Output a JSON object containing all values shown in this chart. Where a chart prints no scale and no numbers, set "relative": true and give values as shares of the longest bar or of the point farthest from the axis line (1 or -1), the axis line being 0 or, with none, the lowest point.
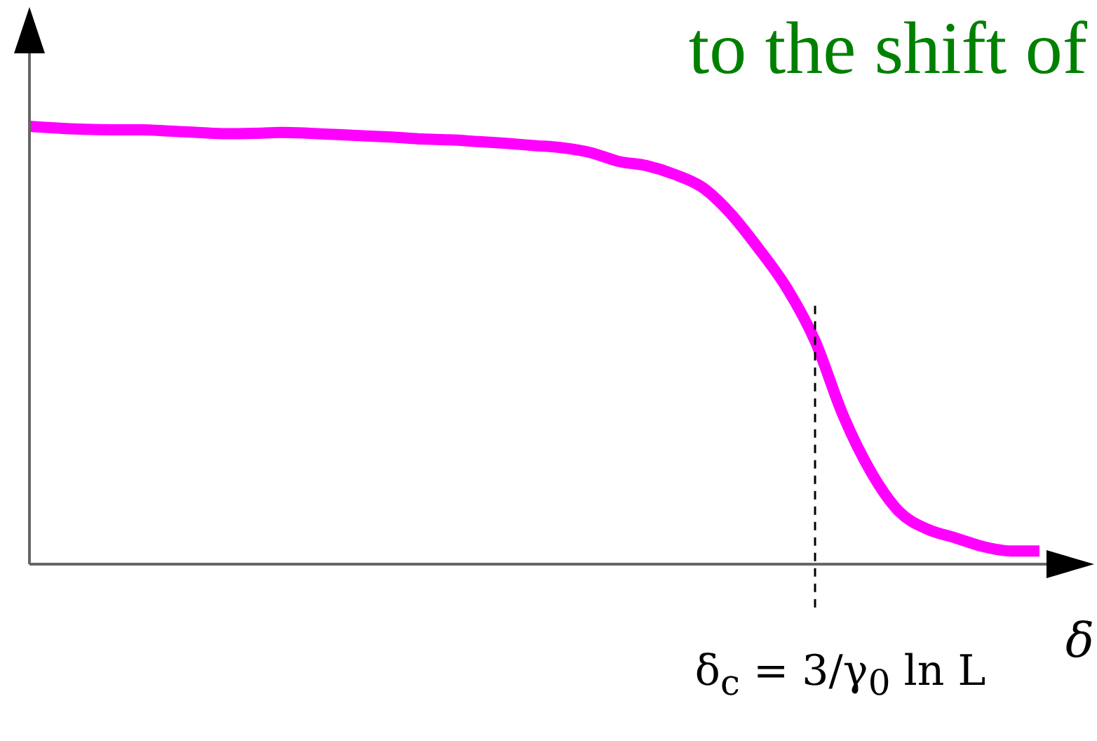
{
  "chart_data": {
    "type": "line",
    "relative": true,
    "categories": [
      null,
      null,
      null,
      null,
      null,
      null,
      null,
      null,
      null,
      null,
      null,
      null,
      null,
      null,
      null,
      null,
      null,
      null,
      null,
      null,
      null,
      null,
      null,
      null,
      null,
      null,
      null,
      null,
      null,
      null,
      null,
      null,
      null,
      null,
      null,
      null,
      null
    ],
    "values": [
      1,
      0.996,
      0.993,
      0.992,
      0.992,
      0.989,
      0.986,
      0.983,
      0.984,
      0.986,
      0.984,
      0.981,
      0.978,
      0.975,
      0.971,
      0.969,
      0.965,
      0.961,
      0.956,
      0.951,
      0.94,
      0.92,
      0.91,
      0.89,
      0.86,
      0.8,
      0.72,
      0.63,
      0.51,
      0.34,
      0.21,
      0.12,
      0.08,
      0.06,
      0.04,
      0.03,
      0.03
    ],
    "color": "#ff00ff",
    "xlabel": "δ",
    "annotations": [
      "to the shift of",
      "δ$_{c}$ = 3/γ$_{0}$ ln L"
    ]
  }
}
